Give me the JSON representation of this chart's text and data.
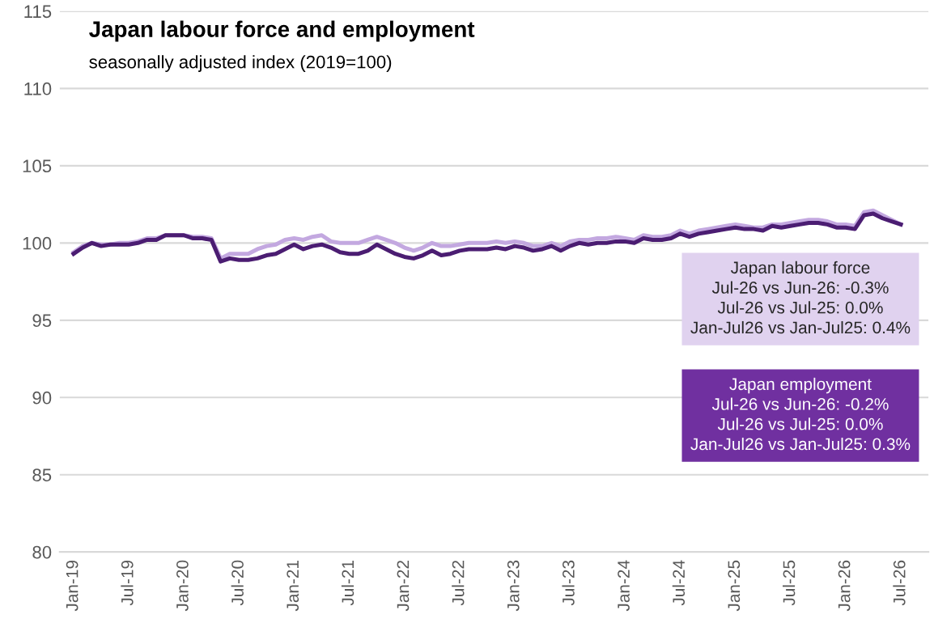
{
  "chart_data": {
    "type": "line",
    "title": "Japan labour force and employment",
    "subtitle": "seasonally adjusted index (2019=100)",
    "categories": [
      "Jan-19",
      null,
      null,
      null,
      null,
      null,
      "Jul-19",
      null,
      null,
      null,
      null,
      null,
      "Jan-20",
      null,
      null,
      null,
      null,
      null,
      "Jul-20",
      null,
      null,
      null,
      null,
      null,
      "Jan-21",
      null,
      null,
      null,
      null,
      null,
      "Jul-21",
      null,
      null,
      null,
      null,
      null,
      "Jan-22",
      null,
      null,
      null,
      null,
      null,
      "Jul-22",
      null,
      null,
      null,
      null,
      null,
      "Jan-23",
      null,
      null,
      null,
      null,
      null,
      "Jul-23",
      null,
      null,
      null,
      null,
      null,
      "Jan-24",
      null,
      null,
      null,
      null,
      null,
      "Jul-24",
      null,
      null,
      null,
      null,
      null,
      "Jan-25",
      null,
      null,
      null,
      null,
      null,
      "Jul-25",
      null,
      null,
      null,
      null,
      null,
      "Jan-26",
      null,
      null,
      null,
      null,
      null,
      "Jul-26"
    ],
    "series": [
      {
        "color": "#c3a8e0",
        "values": [
          99.4,
          99.8,
          100.0,
          99.9,
          99.9,
          100.0,
          100.0,
          100.1,
          100.3,
          100.3,
          100.5,
          100.5,
          100.5,
          100.4,
          100.4,
          100.3,
          99.0,
          99.3,
          99.3,
          99.3,
          99.6,
          99.8,
          99.9,
          100.2,
          100.3,
          100.2,
          100.4,
          100.5,
          100.1,
          100.0,
          100.0,
          100.0,
          100.2,
          100.4,
          100.2,
          100.0,
          99.7,
          99.5,
          99.7,
          100.0,
          99.8,
          99.8,
          99.9,
          100.0,
          100.0,
          100.0,
          100.1,
          100.0,
          100.1,
          100.0,
          99.8,
          99.8,
          100.0,
          99.8,
          100.1,
          100.2,
          100.2,
          100.3,
          100.3,
          100.4,
          100.3,
          100.2,
          100.5,
          100.4,
          100.4,
          100.5,
          100.8,
          100.6,
          100.8,
          100.9,
          101.0,
          101.1,
          101.2,
          101.1,
          101.0,
          101.0,
          101.2,
          101.2,
          101.3,
          101.4,
          101.5,
          101.5,
          101.4,
          101.2,
          101.2,
          101.1,
          102.0,
          102.1,
          101.8,
          101.5,
          101.2
        ]
      },
      {
        "color": "#4b1d72",
        "values": [
          99.3,
          99.7,
          100.0,
          99.8,
          99.9,
          99.9,
          99.9,
          100.0,
          100.2,
          100.2,
          100.5,
          100.5,
          100.5,
          100.3,
          100.3,
          100.2,
          98.8,
          99.0,
          98.9,
          98.9,
          99.0,
          99.2,
          99.3,
          99.6,
          99.9,
          99.6,
          99.8,
          99.9,
          99.7,
          99.4,
          99.3,
          99.3,
          99.5,
          99.9,
          99.6,
          99.3,
          99.1,
          99.0,
          99.2,
          99.5,
          99.2,
          99.3,
          99.5,
          99.6,
          99.6,
          99.6,
          99.7,
          99.6,
          99.8,
          99.7,
          99.5,
          99.6,
          99.8,
          99.5,
          99.8,
          100.0,
          99.9,
          100.0,
          100.0,
          100.1,
          100.1,
          100.0,
          100.3,
          100.2,
          100.2,
          100.3,
          100.6,
          100.4,
          100.6,
          100.7,
          100.8,
          100.9,
          101.0,
          100.9,
          100.9,
          100.8,
          101.1,
          101.0,
          101.1,
          101.2,
          101.3,
          101.3,
          101.2,
          101.0,
          101.0,
          100.9,
          101.8,
          101.9,
          101.6,
          101.4,
          101.2
        ]
      }
    ],
    "ylim": [
      80,
      115
    ],
    "yticks": [
      80,
      85,
      90,
      95,
      100,
      105,
      110,
      115
    ],
    "grid": "y",
    "annotations": [
      "Japan labour force\nJul-26 vs Jun-26: -0.3%\nJul-26 vs Jul-25: 0.0%\nJan-Jul26 vs Jan-Jul25: 0.4%",
      "Japan employment\nJul-26 vs Jun-26: -0.2%\nJul-26 vs Jul-25: 0.0%\nJan-Jul26 vs Jan-Jul25: 0.3%"
    ]
  }
}
